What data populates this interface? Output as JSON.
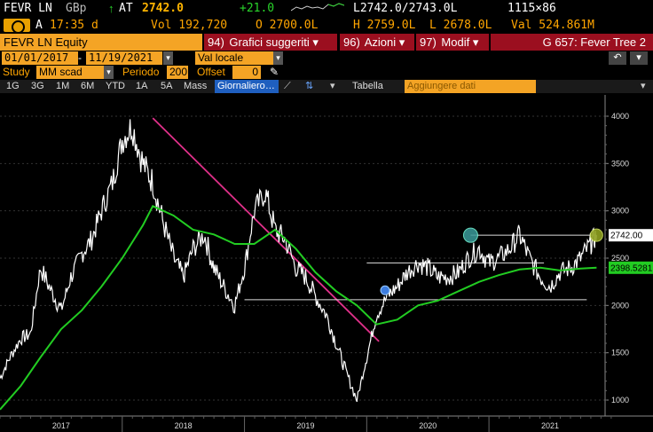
{
  "quote": {
    "ticker": "FEVR LN",
    "currency": "GBp",
    "arrow": "↑",
    "at": "AT",
    "last": "2742.0",
    "change": "+21.0",
    "bid_ask": "L2742.0/2743.0L",
    "size": "1115×86"
  },
  "info": {
    "flag": "A",
    "time": "17:35 d",
    "vol": "Vol 192,720",
    "open": "O 2700.0L",
    "high": "H 2759.0L",
    "low": "L 2678.0L",
    "value": "Val 524.861M"
  },
  "command": {
    "security": "FEVR LN Equity",
    "grafici_num": "94)",
    "grafici_label": "Grafici suggeriti",
    "azioni_num": "96)",
    "azioni_label": "Azioni",
    "modif_num": "97)",
    "modif_label": "Modif",
    "g_label": "G 657: Fever Tree 2"
  },
  "dates": {
    "start": "01/01/2017",
    "separator": "-",
    "end": "11/19/2021",
    "currency_mode": "Val locale"
  },
  "study": {
    "label": "Study",
    "value": "MM scad",
    "periodo_label": "Periodo",
    "periodo": "200",
    "offset_label": "Offset",
    "offset": "0"
  },
  "toolbar": {
    "periods": [
      "1G",
      "3G",
      "1M",
      "6M",
      "YTD",
      "1A",
      "5A",
      "Mass"
    ],
    "active": "Giornaliero",
    "tabella": "Tabella",
    "add_data": "Aggiungere dati"
  },
  "colors": {
    "orange": "#f4a425",
    "red_button": "#9b0f1f",
    "price": "#ffffff",
    "moving_average": "#22cc22",
    "trendline": "#e0308a"
  },
  "chart_data": {
    "type": "line",
    "x_labels": [
      "2017",
      "2018",
      "2019",
      "2020",
      "2021"
    ],
    "y_ticks": [
      1000,
      1500,
      2000,
      2500,
      3000,
      3500,
      4000
    ],
    "ylim": [
      850,
      4150
    ],
    "last_price_label": "2742.00",
    "ma_label": "2398.5281",
    "series": [
      {
        "name": "Price",
        "x": [
          2017.0,
          2017.08,
          2017.17,
          2017.25,
          2017.33,
          2017.42,
          2017.5,
          2017.58,
          2017.67,
          2017.75,
          2017.83,
          2017.92,
          2018.0,
          2018.08,
          2018.17,
          2018.25,
          2018.33,
          2018.42,
          2018.5,
          2018.58,
          2018.67,
          2018.75,
          2018.83,
          2018.92,
          2019.0,
          2019.08,
          2019.17,
          2019.25,
          2019.33,
          2019.42,
          2019.5,
          2019.58,
          2019.67,
          2019.75,
          2019.83,
          2019.92,
          2020.0,
          2020.08,
          2020.17,
          2020.25,
          2020.33,
          2020.42,
          2020.5,
          2020.58,
          2020.67,
          2020.75,
          2020.83,
          2020.92,
          2021.0,
          2021.08,
          2021.17,
          2021.25,
          2021.33,
          2021.42,
          2021.5,
          2021.58,
          2021.67,
          2021.75,
          2021.83,
          2021.88
        ],
        "values": [
          1230,
          1450,
          1650,
          1700,
          2400,
          2150,
          1950,
          2300,
          2550,
          2700,
          3000,
          3300,
          3750,
          3900,
          3500,
          3300,
          2900,
          2500,
          2300,
          2600,
          2750,
          2400,
          2200,
          2000,
          2400,
          3000,
          3200,
          2800,
          2700,
          2400,
          2300,
          2100,
          1900,
          1600,
          1300,
          1000,
          1450,
          1900,
          2100,
          2200,
          2350,
          2450,
          2400,
          2300,
          2300,
          2350,
          2500,
          2600,
          2450,
          2500,
          2600,
          2750,
          2500,
          2300,
          2200,
          2350,
          2400,
          2500,
          2650,
          2742
        ]
      },
      {
        "name": "MM scad 200",
        "x": [
          2017.0,
          2017.17,
          2017.33,
          2017.5,
          2017.67,
          2017.83,
          2018.0,
          2018.17,
          2018.25,
          2018.42,
          2018.58,
          2018.75,
          2018.92,
          2019.08,
          2019.25,
          2019.42,
          2019.58,
          2019.75,
          2019.92,
          2020.08,
          2020.25,
          2020.42,
          2020.58,
          2020.75,
          2020.92,
          2021.08,
          2021.25,
          2021.42,
          2021.58,
          2021.75,
          2021.88
        ],
        "values": [
          900,
          1150,
          1450,
          1750,
          1950,
          2200,
          2500,
          2850,
          3050,
          2950,
          2800,
          2750,
          2650,
          2650,
          2800,
          2600,
          2350,
          2150,
          2000,
          1800,
          1850,
          2000,
          2050,
          2150,
          2250,
          2320,
          2380,
          2400,
          2370,
          2390,
          2398.5
        ]
      }
    ],
    "annotations": [
      {
        "type": "trendline",
        "from": [
          2018.25,
          3980
        ],
        "to": [
          2020.1,
          1620
        ]
      },
      {
        "type": "hline",
        "from": [
          2020.0,
          2450
        ],
        "to": [
          2021.45,
          2450
        ]
      },
      {
        "type": "hline",
        "from": [
          2019.0,
          2060
        ],
        "to": [
          2021.8,
          2060
        ]
      },
      {
        "type": "hline",
        "from": [
          2020.85,
          2742
        ],
        "to": [
          2021.88,
          2742
        ]
      }
    ]
  }
}
